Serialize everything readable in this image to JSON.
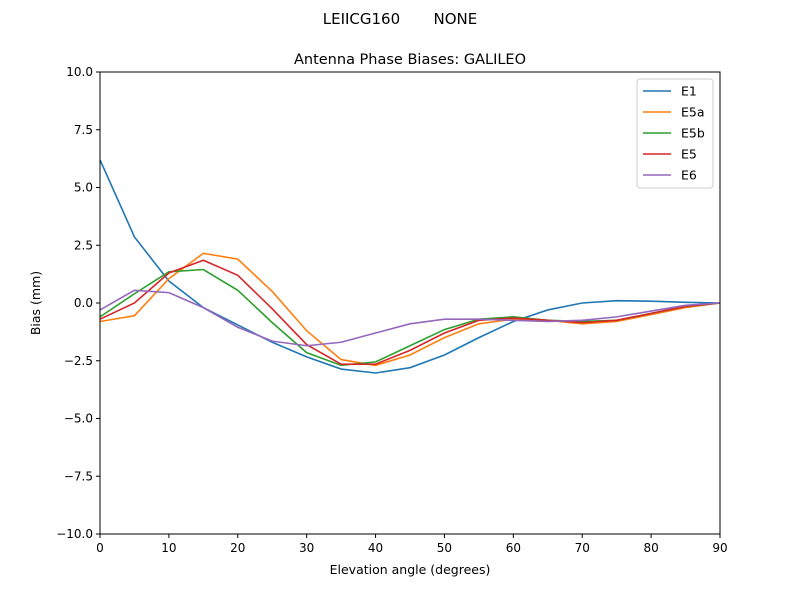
{
  "suptitle": "LEIICG160       NONE",
  "chart_data": {
    "type": "line",
    "title": "Antenna Phase Biases: GALILEO",
    "xlabel": "Elevation angle (degrees)",
    "ylabel": "Bias (mm)",
    "xlim": [
      0,
      90
    ],
    "ylim": [
      -10,
      10
    ],
    "xticks": [
      0,
      10,
      20,
      30,
      40,
      50,
      60,
      70,
      80,
      90
    ],
    "yticks": [
      -10.0,
      -7.5,
      -5.0,
      -2.5,
      0.0,
      2.5,
      5.0,
      7.5,
      10.0
    ],
    "ytick_labels": [
      "−10.0",
      "−7.5",
      "−5.0",
      "−2.5",
      "0.0",
      "2.5",
      "5.0",
      "7.5",
      "10.0"
    ],
    "grid": false,
    "legend_position": "top-right",
    "x": [
      0,
      5,
      10,
      15,
      20,
      25,
      30,
      35,
      40,
      45,
      50,
      55,
      60,
      65,
      70,
      75,
      80,
      85,
      90
    ],
    "series": [
      {
        "name": "E1",
        "color": "#1f77b4",
        "values": [
          6.2,
          2.86,
          0.95,
          -0.2,
          -0.95,
          -1.7,
          -2.33,
          -2.86,
          -3.03,
          -2.8,
          -2.25,
          -1.5,
          -0.8,
          -0.3,
          0.0,
          0.1,
          0.08,
          0.03,
          0.0
        ]
      },
      {
        "name": "E5a",
        "color": "#ff7f0e",
        "values": [
          -0.8,
          -0.55,
          1.05,
          2.15,
          1.9,
          0.5,
          -1.2,
          -2.45,
          -2.7,
          -2.25,
          -1.5,
          -0.9,
          -0.7,
          -0.75,
          -0.9,
          -0.8,
          -0.5,
          -0.2,
          0.0
        ]
      },
      {
        "name": "E5b",
        "color": "#2ca02c",
        "values": [
          -0.6,
          0.4,
          1.35,
          1.45,
          0.55,
          -0.85,
          -2.15,
          -2.7,
          -2.55,
          -1.85,
          -1.15,
          -0.7,
          -0.6,
          -0.75,
          -0.8,
          -0.75,
          -0.45,
          -0.15,
          0.0
        ]
      },
      {
        "name": "E5",
        "color": "#d62728",
        "values": [
          -0.7,
          0.0,
          1.3,
          1.85,
          1.2,
          -0.25,
          -1.8,
          -2.65,
          -2.65,
          -2.05,
          -1.3,
          -0.75,
          -0.65,
          -0.75,
          -0.85,
          -0.75,
          -0.45,
          -0.15,
          0.0
        ]
      },
      {
        "name": "E6",
        "color": "#9467bd",
        "values": [
          -0.3,
          0.55,
          0.45,
          -0.2,
          -1.05,
          -1.65,
          -1.85,
          -1.7,
          -1.3,
          -0.9,
          -0.7,
          -0.7,
          -0.75,
          -0.8,
          -0.75,
          -0.6,
          -0.35,
          -0.1,
          0.0
        ]
      }
    ]
  }
}
